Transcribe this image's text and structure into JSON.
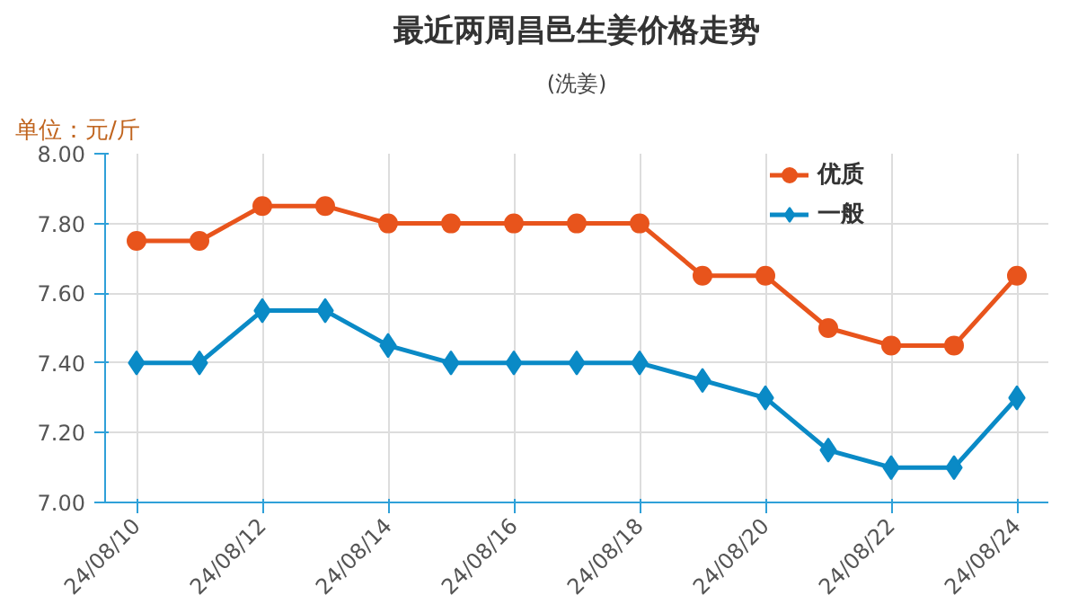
{
  "chart_data": {
    "type": "line",
    "title": "最近两周昌邑生姜价格走势",
    "subtitle": "(洗姜)",
    "ylabel": "单位：元/斤",
    "categories": [
      "24/08/10",
      null,
      "24/08/12",
      null,
      "24/08/14",
      null,
      "24/08/16",
      null,
      "24/08/18",
      null,
      "24/08/20",
      null,
      "24/08/22",
      null,
      "24/08/24"
    ],
    "series": [
      {
        "name": "优质",
        "color": "#e8541c",
        "marker": "circle",
        "values": [
          7.75,
          7.75,
          7.85,
          7.85,
          7.8,
          7.8,
          7.8,
          7.8,
          7.8,
          7.65,
          7.65,
          7.5,
          7.45,
          7.45,
          7.65
        ]
      },
      {
        "name": "一般",
        "color": "#0a8ac6",
        "marker": "diamond",
        "values": [
          7.4,
          7.4,
          7.55,
          7.55,
          7.45,
          7.4,
          7.4,
          7.4,
          7.4,
          7.35,
          7.3,
          7.15,
          7.1,
          7.1,
          7.3
        ]
      }
    ],
    "ylim": [
      7.0,
      8.0
    ],
    "yticks": [
      {
        "value": 7.0,
        "label": "7.00"
      },
      {
        "value": 7.2,
        "label": "7.20"
      },
      {
        "value": 7.4,
        "label": "7.40"
      },
      {
        "value": 7.6,
        "label": "7.60"
      },
      {
        "value": 7.8,
        "label": "7.80"
      },
      {
        "value": 8.0,
        "label": "8.00"
      }
    ],
    "grid": true,
    "legend": "top right",
    "line_style": "solid"
  }
}
